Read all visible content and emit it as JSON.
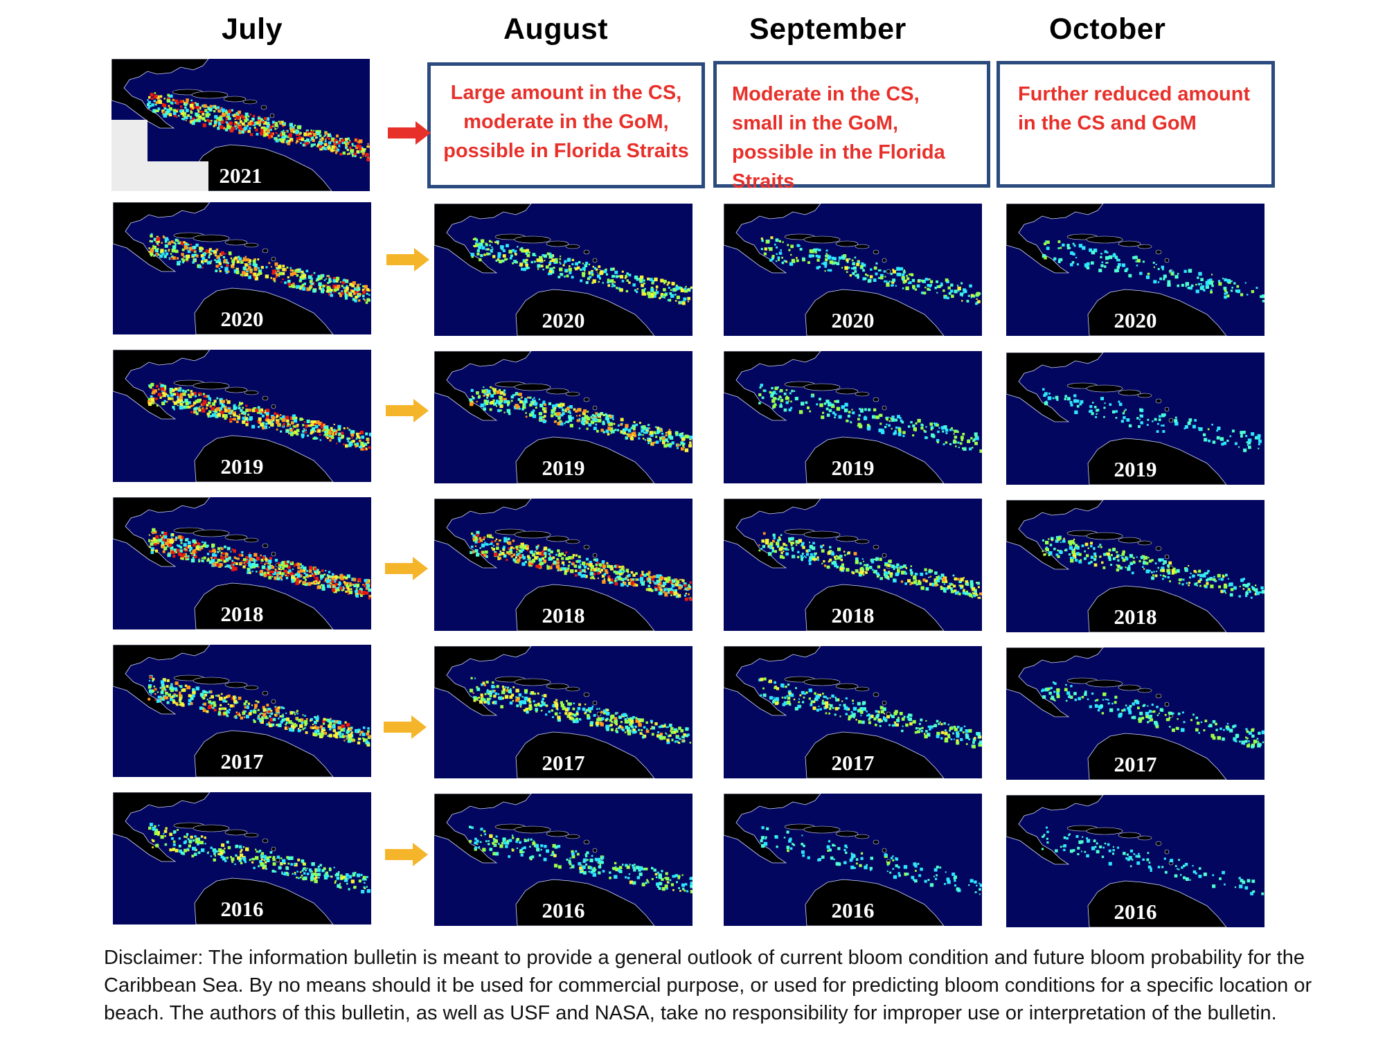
{
  "months": [
    "July",
    "August",
    "September",
    "October"
  ],
  "outlooks": [
    "Large amount in the CS, moderate in the GoM, possible in Florida Straits",
    "Moderate in the CS, small in the GoM, possible in the Florida Straits",
    "Further reduced amount in the CS and GoM"
  ],
  "rows": [
    {
      "july": "2021"
    },
    {
      "july": "2020",
      "august": "2020",
      "september": "2020",
      "october": "2020"
    },
    {
      "july": "2019",
      "august": "2019",
      "september": "2019",
      "october": "2019"
    },
    {
      "july": "2018",
      "august": "2018",
      "september": "2018",
      "october": "2018"
    },
    {
      "july": "2017",
      "august": "2017",
      "september": "2017",
      "october": "2017"
    },
    {
      "july": "2016",
      "august": "2016",
      "september": "2016",
      "october": "2016"
    }
  ],
  "disclaimer": "Disclaimer: The information bulletin is meant to provide a general outlook of current bloom condition and future bloom probability for the Caribbean Sea. By no means should it be used for commercial purpose, or used for predicting bloom conditions for a specific location or beach. The authors of this bulletin, as well as USF and NASA, take no responsibility for improper use or interpretation of the bulletin.",
  "colors": {
    "arrow_current": "#e8302a",
    "arrow_past": "#f5b52a",
    "box_border": "#2b4a7e",
    "ocean": "#03065e"
  }
}
